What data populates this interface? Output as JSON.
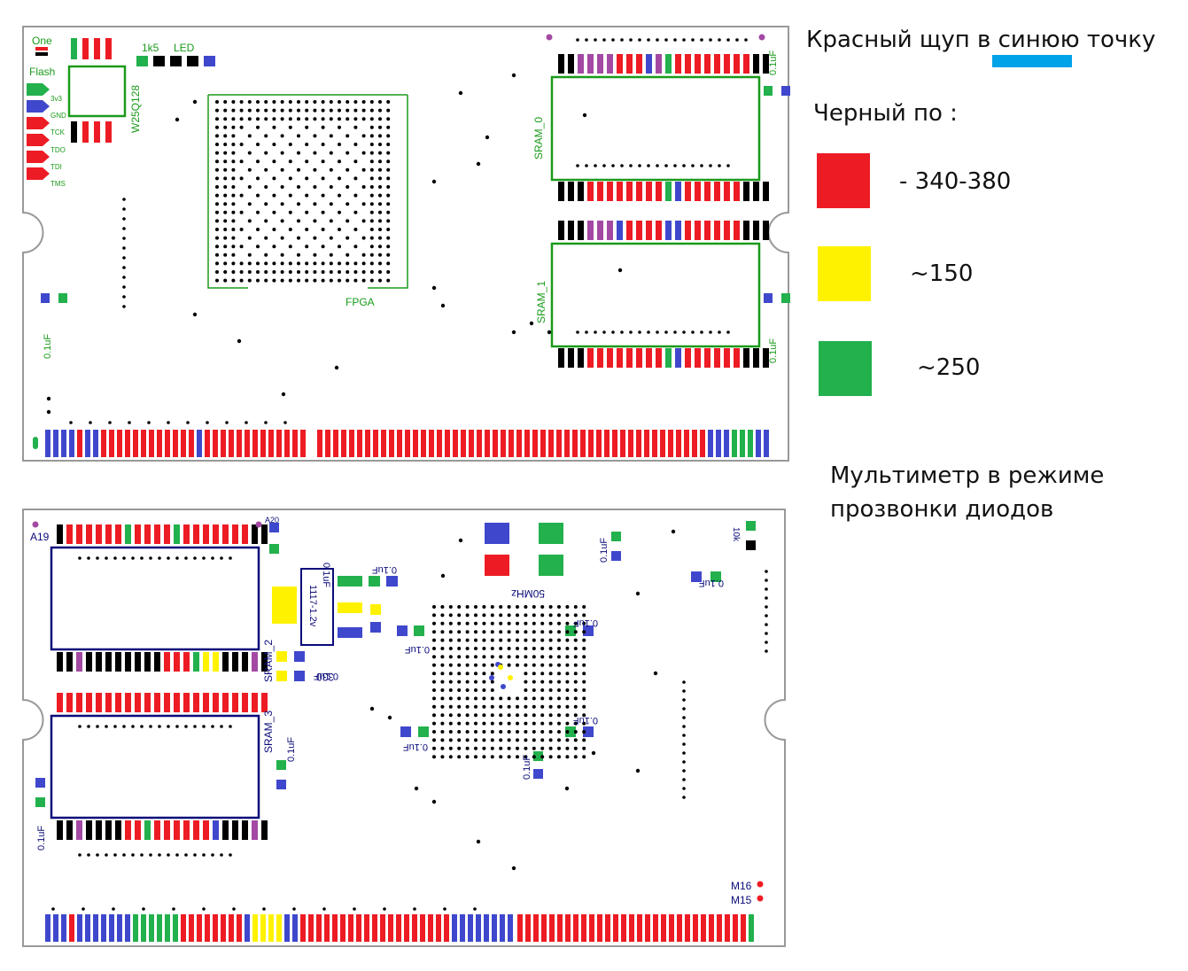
{
  "board_top": {
    "labels": {
      "one": "One",
      "flash": "Flash",
      "r1k5": "1k5",
      "led": "LED",
      "chip": "W25Q128",
      "pin_3v3": "3v3",
      "pin_gnd": "GND",
      "pin_tck": "TCK",
      "pin_tdo": "TDO",
      "pin_tdi": "TDI",
      "pin_tms": "TMS",
      "fpga": "FPGA",
      "sram0": "SRAM_0",
      "sram1": "SRAM_1",
      "cap": "0.1uF"
    }
  },
  "board_bottom": {
    "labels": {
      "a19": "A19",
      "a20": "A20",
      "sram2": "SRAM_2",
      "sram3": "SRAM_3",
      "reg": "1117-1.2v",
      "r330": "330",
      "osc": "50MHz",
      "r10k": "10k",
      "m16": "M16",
      "m15": "M15",
      "cap": "0.1uF"
    }
  },
  "colors": {
    "red": "#ed1c24",
    "blue": "#3f48cc",
    "green": "#22b14c",
    "yellow": "#fff200",
    "purple": "#a349a4",
    "cyan": "#00a2e8",
    "silk": "#1a9a1a",
    "navy": "#0b0b7a"
  },
  "legend": {
    "probe_red_prefix": "Красный щуп в ",
    "probe_red_target": "синюю",
    "probe_red_suffix": " точку",
    "probe_black": "Черный по :",
    "items": [
      {
        "color": "red",
        "value": "- 340-380"
      },
      {
        "color": "yellow",
        "value": "~150"
      },
      {
        "color": "green",
        "value": "~250"
      }
    ],
    "note_line1": "Мультиметр в режиме",
    "note_line2": "прозвонки диодов"
  }
}
